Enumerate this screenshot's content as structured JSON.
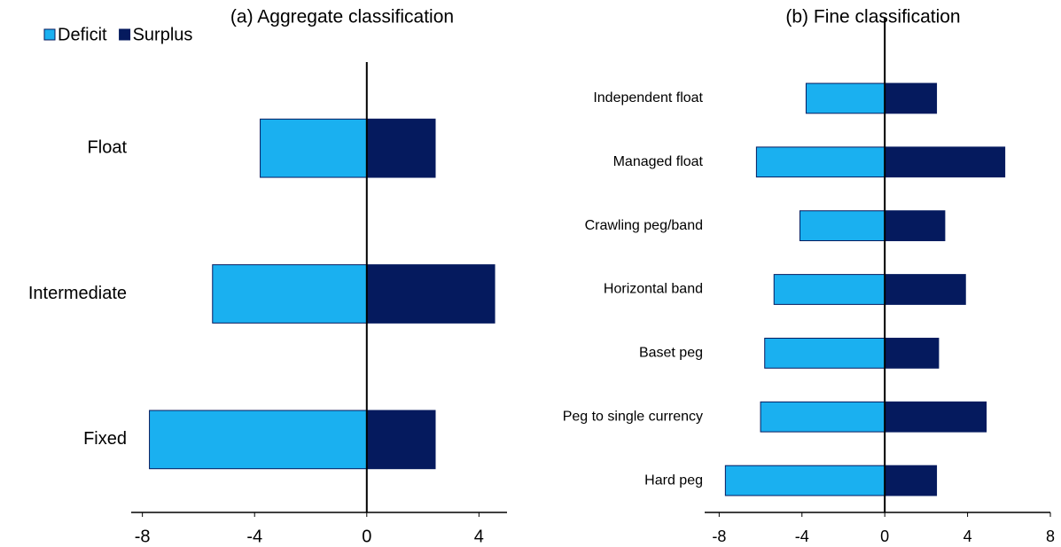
{
  "chart_data": [
    {
      "type": "hbar",
      "title": "(a) Aggregate classification",
      "categories": [
        "Float",
        "Intermediate",
        "Fixed"
      ],
      "series": [
        {
          "name": "Deficit",
          "color": "#1ab0f0",
          "values": [
            -3.8,
            -5.5,
            -7.75
          ]
        },
        {
          "name": "Surplus",
          "color": "#051a5e",
          "values": [
            2.44,
            4.56,
            2.44
          ]
        }
      ],
      "xlim": [
        -8.4,
        5
      ],
      "xticks": [
        -8,
        -4,
        0,
        4
      ],
      "legend": "top-left"
    },
    {
      "type": "hbar",
      "title": "(b) Fine classification",
      "categories": [
        "Independent float",
        "Managed float",
        "Crawling peg/band",
        "Horizontal band",
        "Baset peg",
        "Peg to single currency",
        "Hard peg"
      ],
      "series": [
        {
          "name": "Deficit",
          "color": "#1ab0f0",
          "values": [
            -3.8,
            -6.2,
            -4.1,
            -5.35,
            -5.8,
            -6.0,
            -7.7
          ]
        },
        {
          "name": "Surplus",
          "color": "#051a5e",
          "values": [
            2.5,
            5.8,
            2.9,
            3.9,
            2.6,
            4.9,
            2.5
          ]
        }
      ],
      "xlim": [
        -8.7,
        8
      ],
      "xticks": [
        -8,
        -4,
        0,
        4,
        8
      ]
    }
  ]
}
